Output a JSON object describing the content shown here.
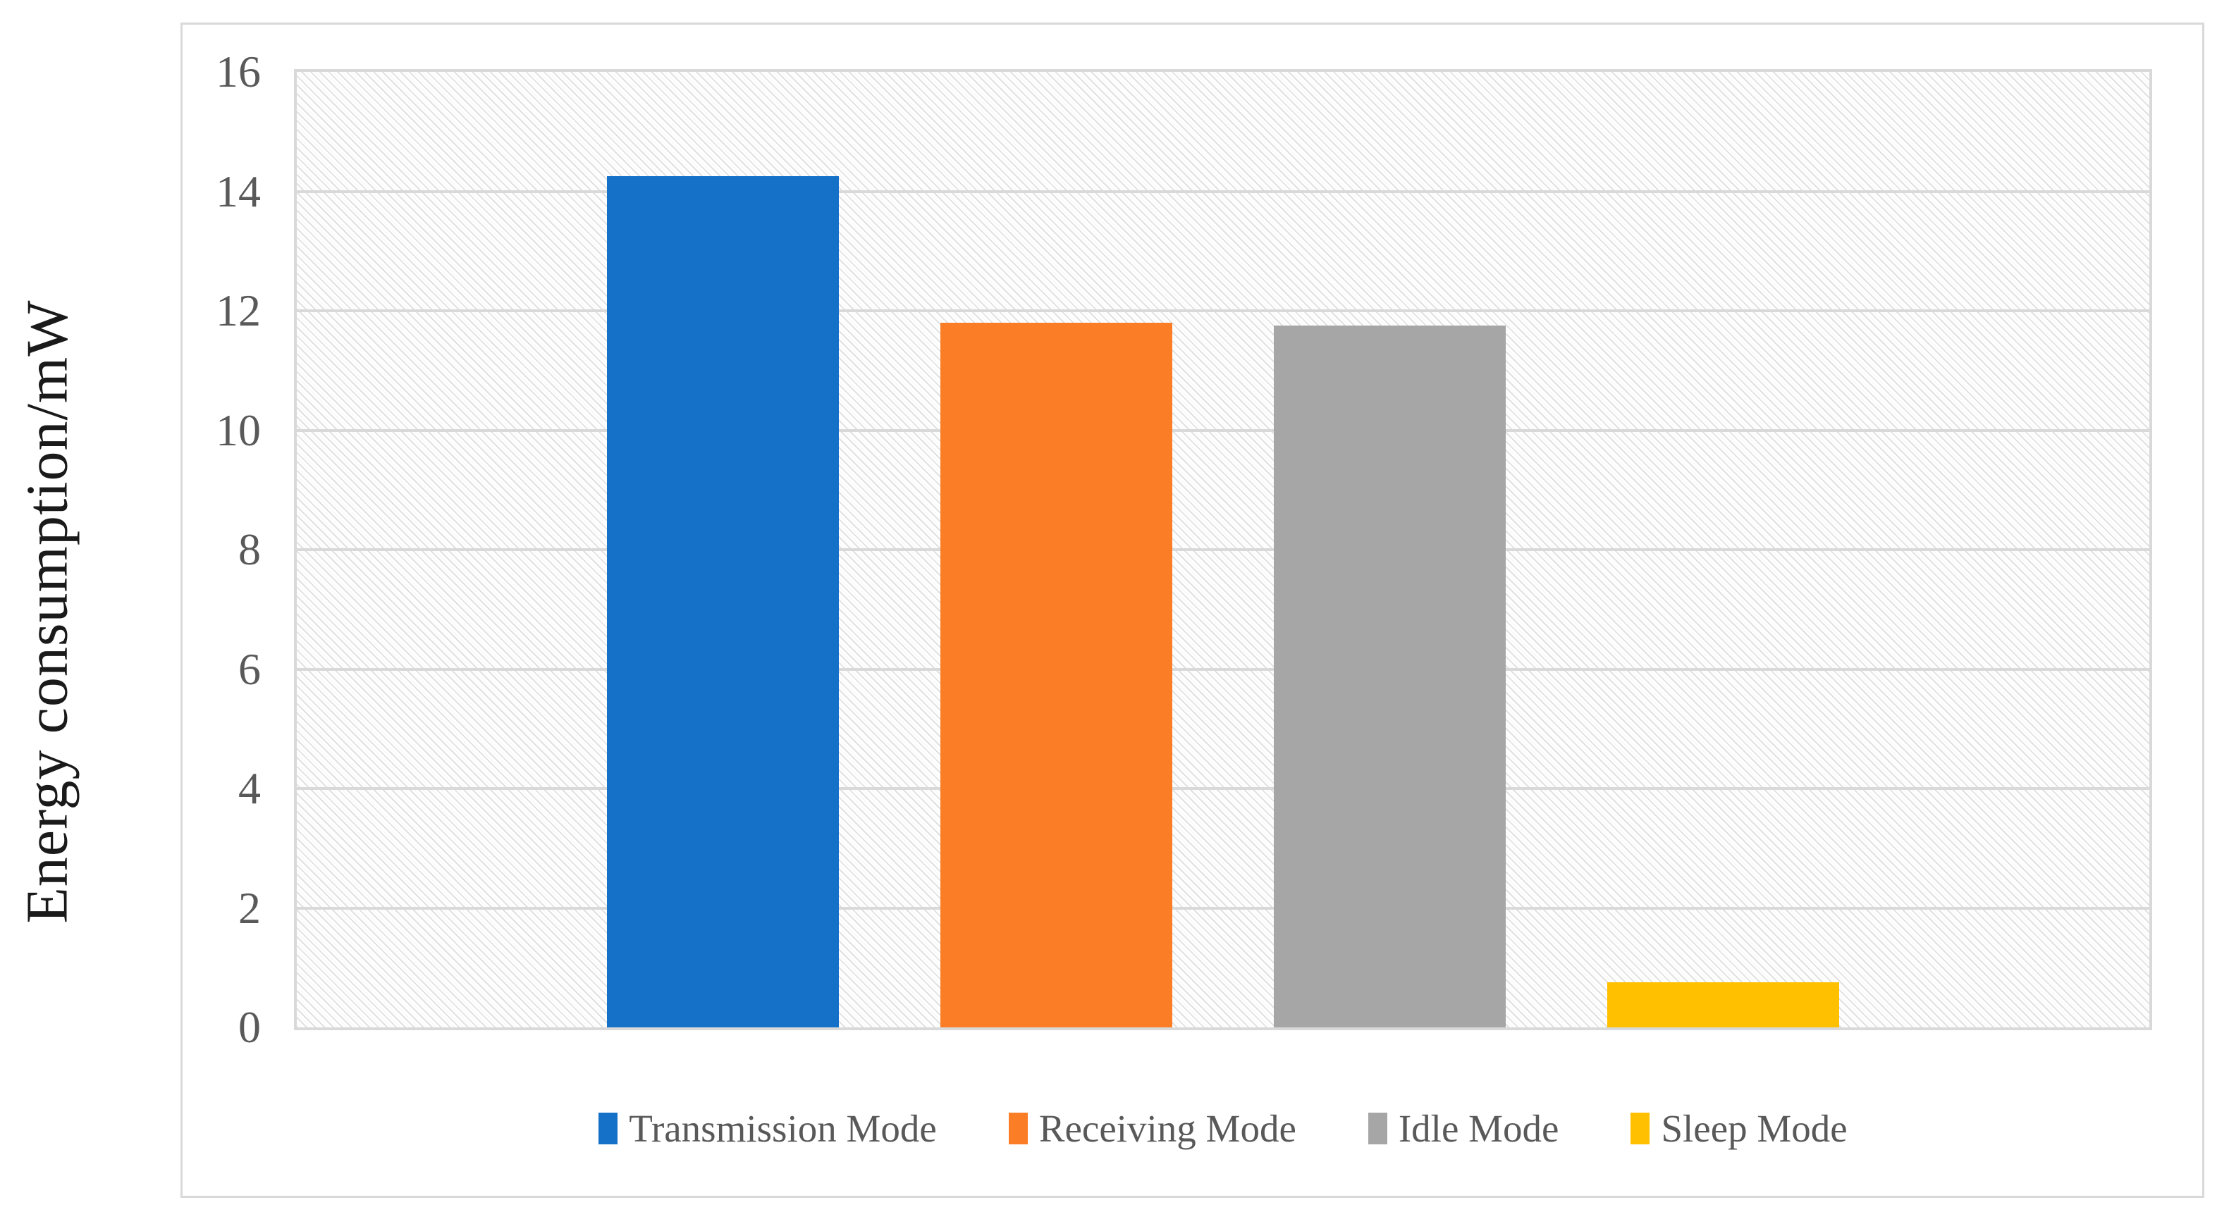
{
  "chart_data": {
    "type": "bar",
    "title": "",
    "xlabel": "",
    "ylabel": "Energy consumption/mW",
    "categories": [
      "Transmission Mode",
      "Receiving Mode",
      "Idle Mode",
      "Sleep Mode"
    ],
    "values": [
      14.25,
      11.8,
      11.75,
      0.75
    ],
    "series_colors": [
      "#1571c8",
      "#fb7d25",
      "#a6a6a6",
      "#ffc000"
    ],
    "ylim": [
      0,
      16
    ],
    "ytick_step": 2,
    "yticks": [
      "0",
      "2",
      "4",
      "6",
      "8",
      "10",
      "12",
      "14",
      "16"
    ],
    "grid": "horizontal gridlines on",
    "plot_background": "light gray diagonal hatch pattern",
    "legend_position": "bottom",
    "legend": [
      {
        "label": "Transmission Mode",
        "color": "#1571c8"
      },
      {
        "label": "Receiving Mode",
        "color": "#fb7d25"
      },
      {
        "label": "Idle Mode",
        "color": "#a6a6a6"
      },
      {
        "label": "Sleep Mode",
        "color": "#ffc000"
      }
    ],
    "ui_colors": {
      "gridline": "#d9d9d9",
      "frame_border": "#d9d9d9",
      "axis_text": "#595959",
      "axis_title_text": "#1a1a1a"
    }
  }
}
